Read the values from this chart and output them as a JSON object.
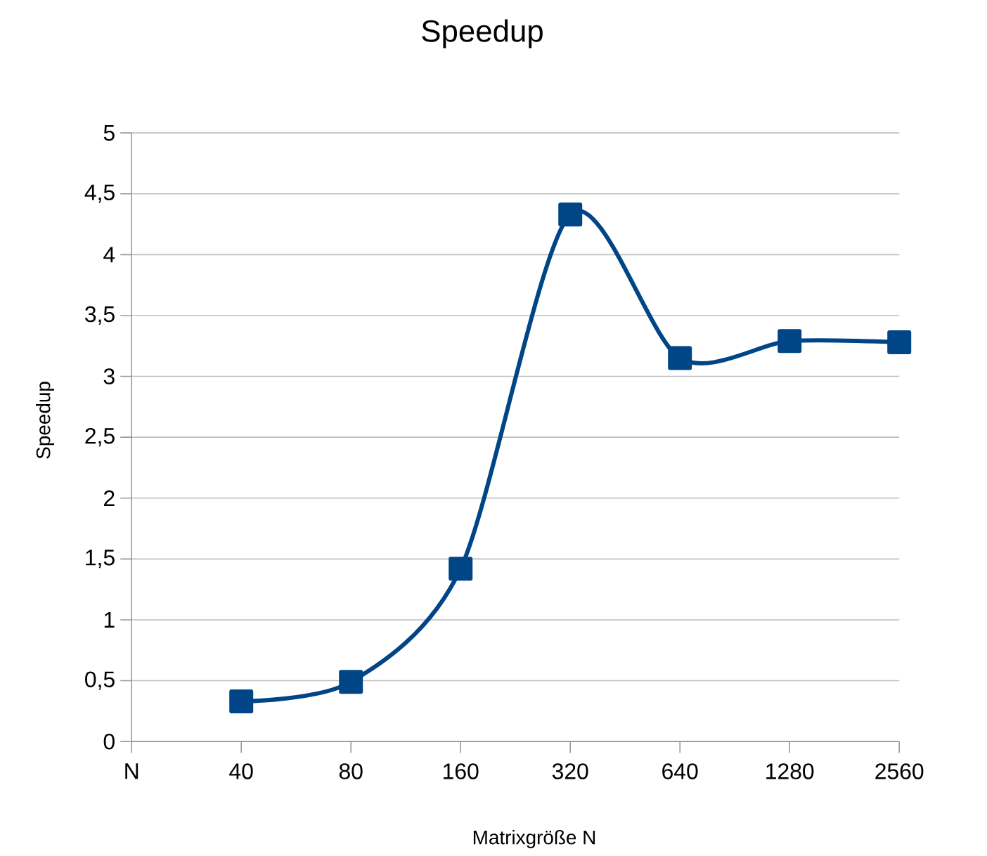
{
  "chart_data": {
    "type": "line",
    "title": "Speedup",
    "xlabel": "Matrixgröße N",
    "ylabel": "Speedup",
    "categories": [
      "N",
      "40",
      "80",
      "160",
      "320",
      "640",
      "1280",
      "2560"
    ],
    "series": [
      {
        "color": "#004586",
        "values": [
          null,
          0.33,
          0.49,
          1.42,
          4.33,
          3.15,
          3.29,
          3.28
        ]
      }
    ],
    "ylim": [
      0,
      5
    ],
    "yticks": [
      0,
      {
        "value": 0.5,
        "label": "0,5"
      },
      1,
      {
        "value": 1.5,
        "label": "1,5"
      },
      2,
      {
        "value": 2.5,
        "label": "2,5"
      },
      3,
      {
        "value": 3.5,
        "label": "3,5"
      },
      4,
      {
        "value": 4.5,
        "label": "4,5"
      },
      5
    ],
    "grid": "y",
    "marker": "square",
    "line_style": "solid"
  }
}
